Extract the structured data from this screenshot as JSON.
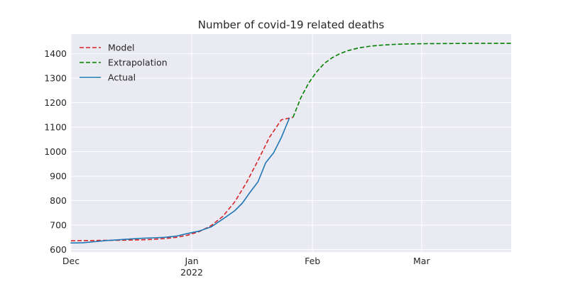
{
  "chart_data": {
    "type": "line",
    "title": "Number of covid-19 related deaths",
    "xlabel": "",
    "ylabel": "",
    "xlim": [
      "2021-12-01",
      "2022-03-24"
    ],
    "ylim": [
      590,
      1480
    ],
    "grid": true,
    "legend": "top-left",
    "x_ticks": [
      {
        "date": "2021-12-01",
        "label": "Dec",
        "sublabel": ""
      },
      {
        "date": "2022-01-01",
        "label": "Jan",
        "sublabel": "2022"
      },
      {
        "date": "2022-02-01",
        "label": "Feb",
        "sublabel": ""
      },
      {
        "date": "2022-03-01",
        "label": "Mar",
        "sublabel": ""
      }
    ],
    "y_ticks": [
      600,
      700,
      800,
      900,
      1000,
      1100,
      1200,
      1300,
      1400
    ],
    "series": [
      {
        "name": "Model",
        "color": "#d62728",
        "style": "dashed",
        "x": [
          "2021-12-01",
          "2021-12-04",
          "2021-12-07",
          "2021-12-10",
          "2021-12-13",
          "2021-12-16",
          "2021-12-19",
          "2021-12-22",
          "2021-12-25",
          "2021-12-28",
          "2021-12-31",
          "2022-01-03",
          "2022-01-06",
          "2022-01-09",
          "2022-01-12",
          "2022-01-15",
          "2022-01-18",
          "2022-01-21",
          "2022-01-24",
          "2022-01-27"
        ],
        "y": [
          636,
          637,
          637,
          638,
          638,
          639,
          640,
          642,
          645,
          650,
          659,
          674,
          698,
          736,
          794,
          872,
          964,
          1060,
          1130,
          1140
        ]
      },
      {
        "name": "Extrapolation",
        "color": "#008000",
        "style": "dashed",
        "x": [
          "2022-01-27",
          "2022-01-29",
          "2022-01-31",
          "2022-02-02",
          "2022-02-04",
          "2022-02-06",
          "2022-02-08",
          "2022-02-10",
          "2022-02-13",
          "2022-02-16",
          "2022-02-19",
          "2022-02-22",
          "2022-02-26",
          "2022-03-02",
          "2022-03-08",
          "2022-03-14",
          "2022-03-24"
        ],
        "y": [
          1140,
          1220,
          1280,
          1325,
          1360,
          1383,
          1400,
          1412,
          1424,
          1431,
          1435,
          1438,
          1440,
          1441,
          1441.5,
          1442,
          1442
        ]
      },
      {
        "name": "Actual",
        "color": "#1f77b4",
        "style": "solid",
        "x": [
          "2021-12-01",
          "2021-12-04",
          "2021-12-07",
          "2021-12-10",
          "2021-12-13",
          "2021-12-16",
          "2021-12-19",
          "2021-12-22",
          "2021-12-25",
          "2021-12-28",
          "2021-12-31",
          "2022-01-03",
          "2022-01-06",
          "2022-01-09",
          "2022-01-12",
          "2022-01-14",
          "2022-01-16",
          "2022-01-18",
          "2022-01-20",
          "2022-01-22",
          "2022-01-24",
          "2022-01-26"
        ],
        "y": [
          627,
          628,
          632,
          637,
          640,
          643,
          646,
          648,
          650,
          655,
          666,
          676,
          693,
          725,
          758,
          790,
          835,
          877,
          955,
          995,
          1058,
          1135
        ]
      }
    ]
  }
}
